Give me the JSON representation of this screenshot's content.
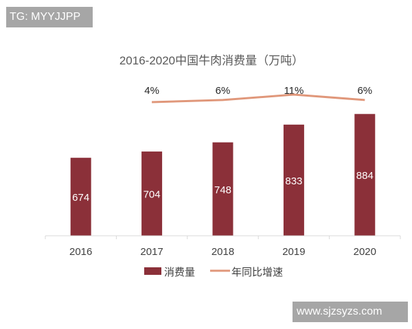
{
  "watermarks": {
    "top_left": "TG: MYYJJPP",
    "bottom_right": "www.sjzsyzs.com"
  },
  "chart_data": {
    "type": "bar+line",
    "title": "2016-2020中国牛肉消费量（万吨）",
    "categories": [
      "2016",
      "2017",
      "2018",
      "2019",
      "2020"
    ],
    "series": [
      {
        "name": "消费量",
        "type": "bar",
        "values": [
          674,
          704,
          748,
          833,
          884
        ],
        "color": "#8b3039",
        "labels": [
          "674",
          "704",
          "748",
          "833",
          "884"
        ]
      },
      {
        "name": "年同比增速",
        "type": "line",
        "values": [
          null,
          4,
          6,
          11,
          6
        ],
        "color": "#e0977a",
        "labels": [
          "",
          "4%",
          "6%",
          "11%",
          "6%"
        ],
        "unit": "%"
      }
    ],
    "ylim_bar": [
      300,
      1000
    ],
    "grid": false,
    "legend": "bottom"
  }
}
